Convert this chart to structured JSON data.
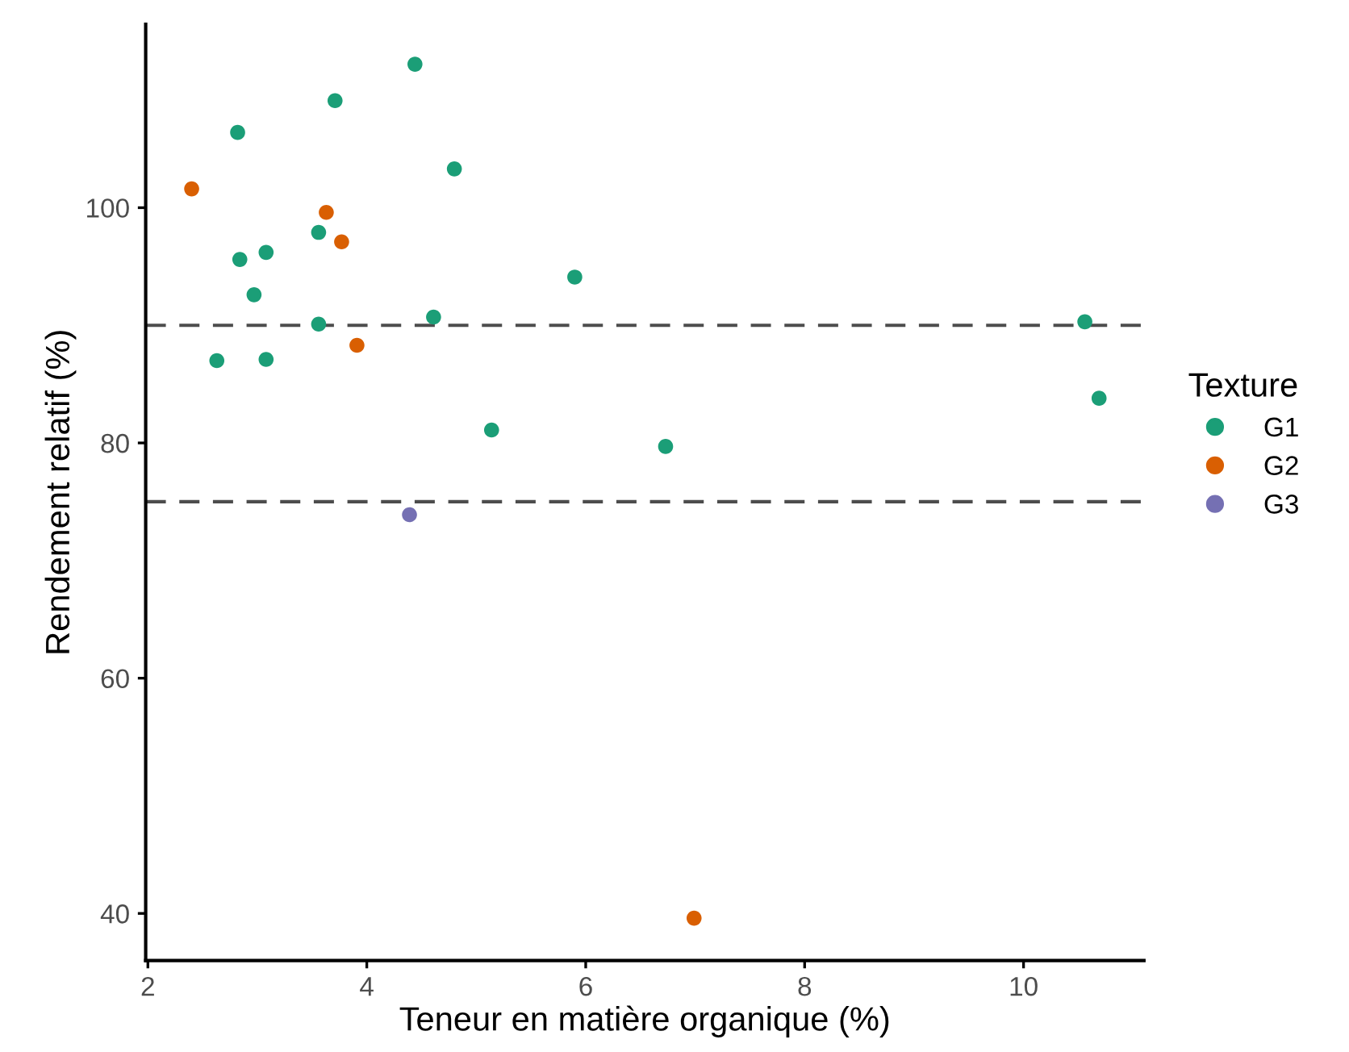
{
  "chart_data": {
    "type": "scatter",
    "xlabel": "Teneur en matière organique (%)",
    "ylabel": "Rendement relatif (%)",
    "legend_title": "Texture",
    "legend": "right",
    "marker": "circle",
    "grid": false,
    "xlim": [
      1.98,
      11.1
    ],
    "ylim": [
      36.0,
      115.6
    ],
    "xticks": [
      2,
      4,
      6,
      8,
      10
    ],
    "yticks": [
      40,
      60,
      80,
      100
    ],
    "series": [
      {
        "name": "G1",
        "color": "#1b9e77",
        "x": [
          2.82,
          4.44,
          3.71,
          4.8,
          2.84,
          3.08,
          3.56,
          2.97,
          3.56,
          4.61,
          2.63,
          3.08,
          5.9,
          5.14,
          6.73,
          10.56,
          10.69
        ],
        "values": [
          106.4,
          112.2,
          109.1,
          103.3,
          95.6,
          96.2,
          97.9,
          92.6,
          90.1,
          90.7,
          87.0,
          87.1,
          94.1,
          81.1,
          79.7,
          90.3,
          83.8
        ]
      },
      {
        "name": "G2",
        "color": "#d95f02",
        "x": [
          2.4,
          3.63,
          3.77,
          3.91,
          6.99
        ],
        "values": [
          101.6,
          99.6,
          97.1,
          88.3,
          39.6
        ]
      },
      {
        "name": "G3",
        "color": "#7570b3",
        "x": [
          4.39
        ],
        "values": [
          73.9
        ]
      }
    ],
    "ref_lines": [
      {
        "axis": "y",
        "value": 90,
        "color": "#4d4d4d",
        "line_style": "dashed"
      },
      {
        "axis": "y",
        "value": 75,
        "color": "#4d4d4d",
        "line_style": "dashed"
      }
    ]
  }
}
